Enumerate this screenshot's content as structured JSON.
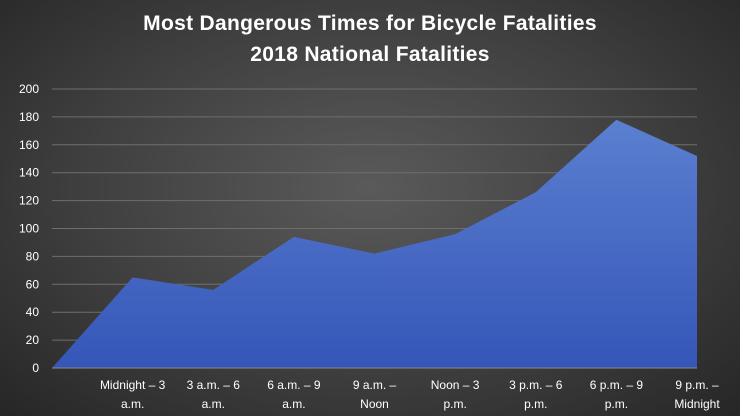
{
  "chart_data": {
    "type": "area",
    "title": "Most Dangerous Times for Bicycle Fatalities",
    "subtitle": "2018 National Fatalities",
    "categories": [
      "",
      "Midnight – 3 a.m.",
      "3 a.m. – 6 a.m.",
      "6 a.m. – 9 a.m.",
      "9 a.m. – Noon",
      "Noon – 3 p.m.",
      "3 p.m. – 6 p.m.",
      "6 p.m. – 9 p.m.",
      "9 p.m. – Midnight"
    ],
    "tick_label_lines": [
      [
        "",
        ""
      ],
      [
        "Midnight – 3",
        "a.m."
      ],
      [
        "3 a.m. – 6",
        "a.m."
      ],
      [
        "6 a.m. – 9",
        "a.m."
      ],
      [
        "9 a.m. –",
        "Noon"
      ],
      [
        "Noon – 3",
        "p.m."
      ],
      [
        "3 p.m. – 6",
        "p.m."
      ],
      [
        "6 p.m. – 9",
        "p.m."
      ],
      [
        "9 p.m. –",
        "Midnight"
      ]
    ],
    "series": [
      {
        "values": [
          0,
          65,
          56,
          94,
          82,
          96,
          126,
          178,
          152
        ]
      }
    ],
    "ylim": [
      0,
      200
    ],
    "yticks": [
      0,
      20,
      40,
      60,
      80,
      100,
      120,
      140,
      160,
      180,
      200
    ],
    "grid": true,
    "colors": {
      "area_top": "#5b7fd0",
      "area_bottom": "#3556b8",
      "grid": "#6e6e6e",
      "axis": "#8a8a8a"
    }
  }
}
